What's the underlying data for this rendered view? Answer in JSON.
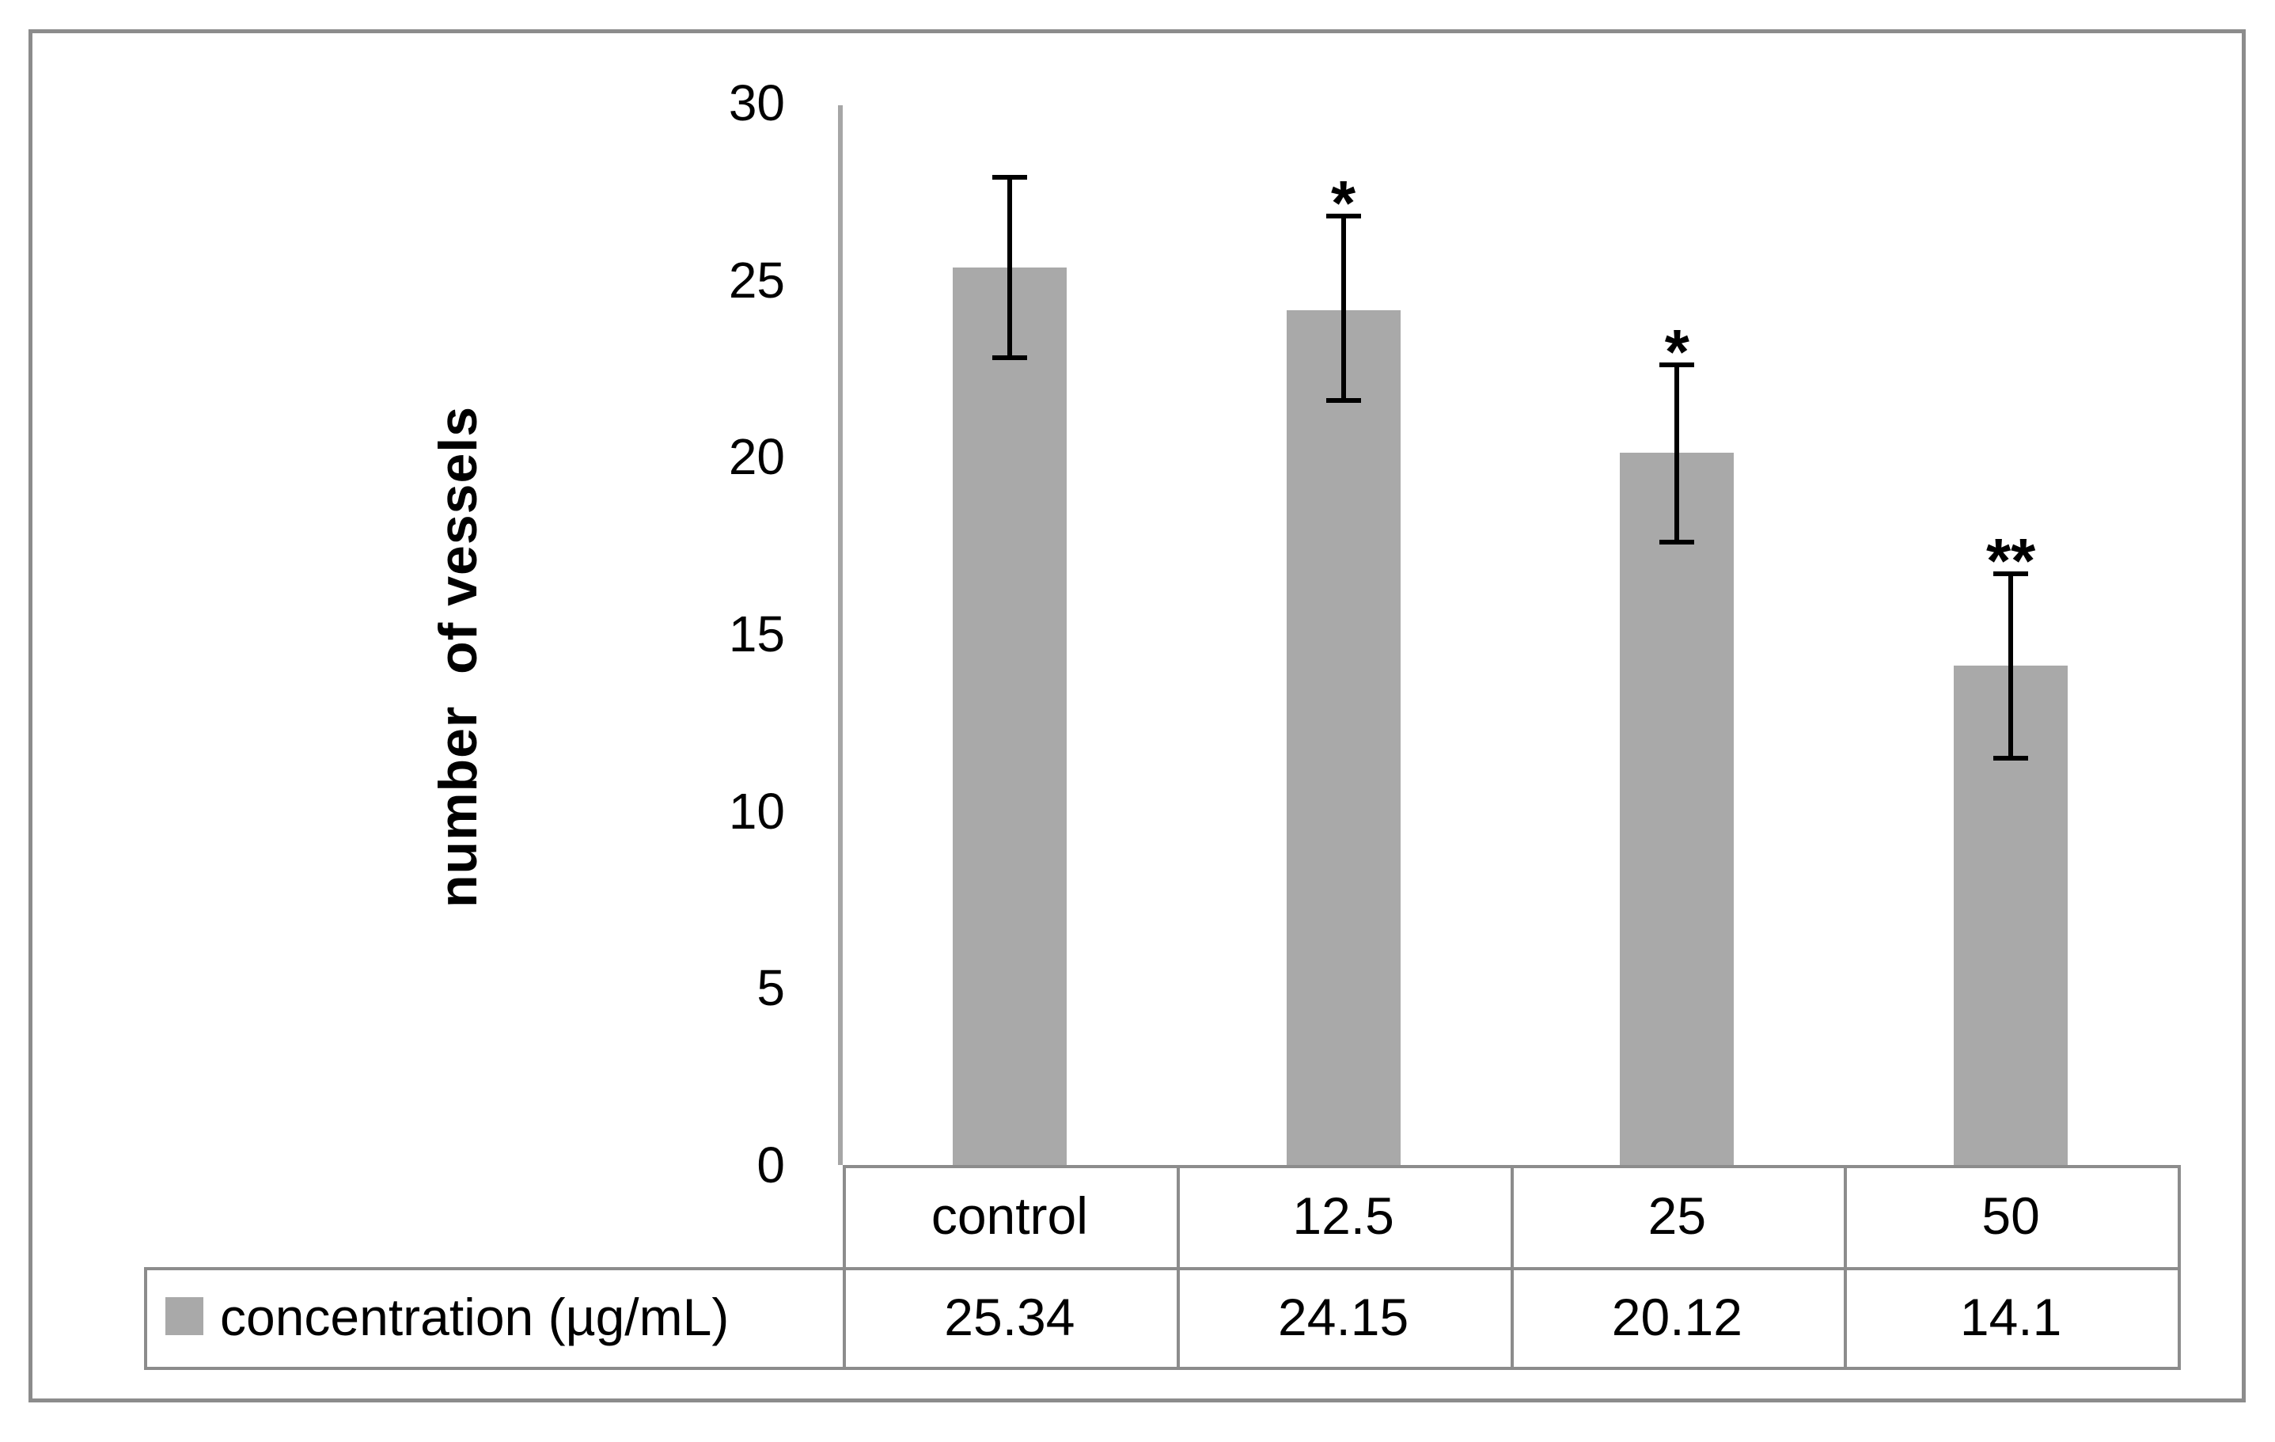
{
  "chart_data": {
    "type": "bar",
    "title": "",
    "ylabel": "number  of vessels",
    "xlabel": "",
    "ylim": [
      0,
      30
    ],
    "yticks": [
      0,
      5,
      10,
      15,
      20,
      25,
      30
    ],
    "grid": false,
    "legend_position": "bottom-table",
    "series_name": "concentration (µg/mL)",
    "categories": [
      "control",
      "12.5",
      "25",
      "50"
    ],
    "values": [
      25.34,
      24.15,
      20.12,
      14.1
    ],
    "value_labels": [
      "25.34",
      "24.15",
      "20.12",
      "14.1"
    ],
    "error_upper": [
      27.9,
      26.8,
      22.6,
      16.7
    ],
    "error_lower": [
      22.8,
      21.6,
      17.6,
      11.5
    ],
    "significance": [
      "",
      "*",
      "*",
      "**"
    ],
    "bar_color": "#a9a9a9",
    "error_color": "#000000",
    "axis_color": "#a6a6a6",
    "frame_border_color": "#8c8c8c",
    "table_border_color": "#8c8c8c",
    "legend_swatch_color": "#a9a9a9",
    "text_color": "#000000"
  }
}
